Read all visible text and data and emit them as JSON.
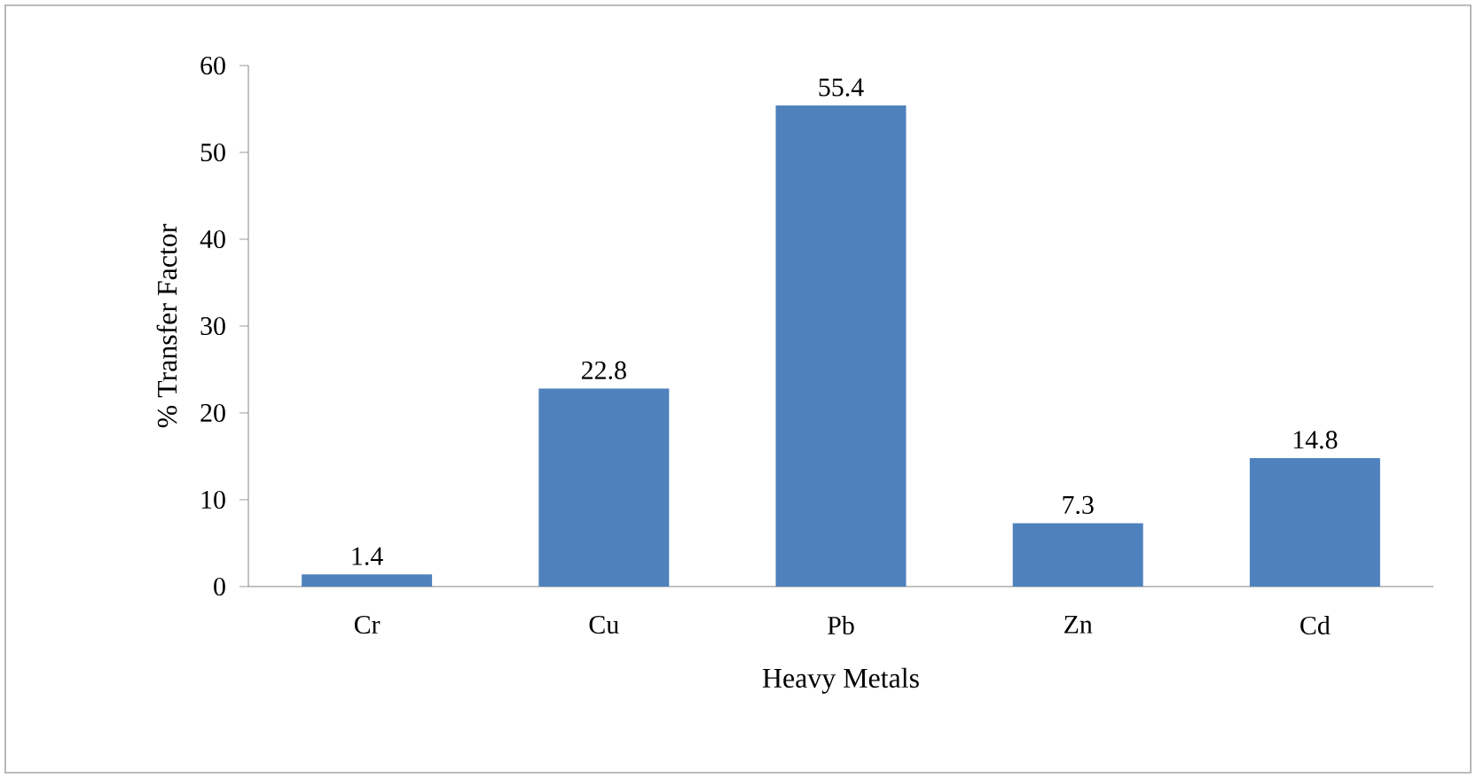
{
  "chart_data": {
    "type": "bar",
    "xlabel": "Heavy Metals",
    "ylabel": "% Transfer Factor",
    "categories": [
      "Cr",
      "Cu",
      "Pb",
      "Zn",
      "Cd"
    ],
    "values": [
      1.4,
      22.8,
      55.4,
      7.3,
      14.8
    ],
    "color": "#4f81bd",
    "ylim": [
      0,
      60
    ],
    "yticks": [
      0,
      10,
      20,
      30,
      40,
      50,
      60
    ],
    "data_labels": true,
    "grid": false
  }
}
